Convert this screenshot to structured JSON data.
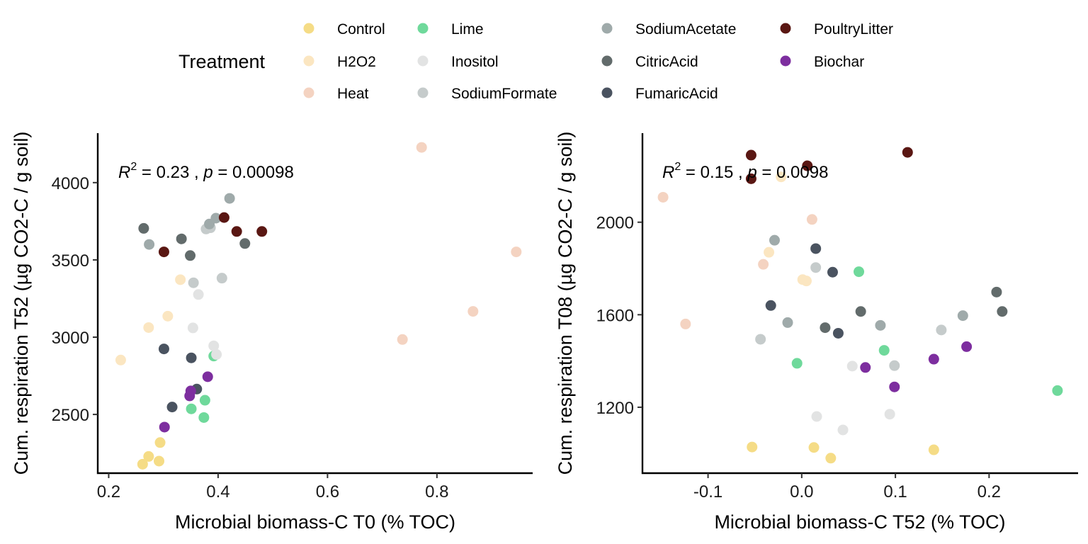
{
  "legend": {
    "title": "Treatment",
    "items": [
      {
        "label": "Control",
        "color": "#f5dc86"
      },
      {
        "label": "H2O2",
        "color": "#fbe6c1"
      },
      {
        "label": "Heat",
        "color": "#f4d3c1"
      },
      {
        "label": "Lime",
        "color": "#6fd99b"
      },
      {
        "label": "Inositol",
        "color": "#e2e3e3"
      },
      {
        "label": "SodiumFormate",
        "color": "#c5cbcb"
      },
      {
        "label": "SodiumAcetate",
        "color": "#9faaaa"
      },
      {
        "label": "CitricAcid",
        "color": "#626b6b"
      },
      {
        "label": "FumaricAcid",
        "color": "#4a5360"
      },
      {
        "label": "PoultryLitter",
        "color": "#5a1713"
      },
      {
        "label": "Biochar",
        "color": "#7d2e9f"
      }
    ]
  },
  "chart_data": [
    {
      "type": "scatter",
      "xlabel": "Microbial biomass-C T0 (% TOC)",
      "ylabel": "Cum. respiration T52 (µg CO2-C / g soil)",
      "stat": {
        "r2_label": "R",
        "r2_sup": "2",
        "r2_value": " = 0.23 , ",
        "p_label": "p",
        "p_value": " = 0.00098"
      },
      "xlim": [
        0.18,
        0.975
      ],
      "ylim": [
        2120,
        4320
      ],
      "xticks": [
        0.2,
        0.4,
        0.6,
        0.8
      ],
      "xtick_labels": [
        "0.2",
        "0.4",
        "0.6",
        "0.8"
      ],
      "yticks": [
        2500,
        3000,
        3500,
        4000
      ],
      "ytick_labels": [
        "2500",
        "3000",
        "3500",
        "4000"
      ],
      "grid": false,
      "points": [
        {
          "group": "Control",
          "x": 0.262,
          "y": 2178
        },
        {
          "group": "Control",
          "x": 0.273,
          "y": 2228
        },
        {
          "group": "Control",
          "x": 0.292,
          "y": 2198
        },
        {
          "group": "Control",
          "x": 0.294,
          "y": 2318
        },
        {
          "group": "H2O2",
          "x": 0.222,
          "y": 2852
        },
        {
          "group": "H2O2",
          "x": 0.273,
          "y": 3062
        },
        {
          "group": "H2O2",
          "x": 0.308,
          "y": 3136
        },
        {
          "group": "H2O2",
          "x": 0.331,
          "y": 3372
        },
        {
          "group": "Heat",
          "x": 0.737,
          "y": 2985
        },
        {
          "group": "Heat",
          "x": 0.772,
          "y": 4228
        },
        {
          "group": "Heat",
          "x": 0.866,
          "y": 3167
        },
        {
          "group": "Heat",
          "x": 0.945,
          "y": 3552
        },
        {
          "group": "Lime",
          "x": 0.351,
          "y": 2536
        },
        {
          "group": "Lime",
          "x": 0.374,
          "y": 2480
        },
        {
          "group": "Lime",
          "x": 0.376,
          "y": 2592
        },
        {
          "group": "Lime",
          "x": 0.392,
          "y": 2878
        },
        {
          "group": "Inositol",
          "x": 0.354,
          "y": 3060
        },
        {
          "group": "Inositol",
          "x": 0.364,
          "y": 3276
        },
        {
          "group": "Inositol",
          "x": 0.392,
          "y": 2944
        },
        {
          "group": "Inositol",
          "x": 0.397,
          "y": 2888
        },
        {
          "group": "SodiumFormate",
          "x": 0.355,
          "y": 3352
        },
        {
          "group": "SodiumFormate",
          "x": 0.378,
          "y": 3700
        },
        {
          "group": "SodiumFormate",
          "x": 0.386,
          "y": 3708
        },
        {
          "group": "SodiumFormate",
          "x": 0.407,
          "y": 3382
        },
        {
          "group": "SodiumAcetate",
          "x": 0.274,
          "y": 3600
        },
        {
          "group": "SodiumAcetate",
          "x": 0.384,
          "y": 3732
        },
        {
          "group": "SodiumAcetate",
          "x": 0.396,
          "y": 3770
        },
        {
          "group": "SodiumAcetate",
          "x": 0.421,
          "y": 3898
        },
        {
          "group": "CitricAcid",
          "x": 0.264,
          "y": 3704
        },
        {
          "group": "CitricAcid",
          "x": 0.333,
          "y": 3636
        },
        {
          "group": "CitricAcid",
          "x": 0.349,
          "y": 3528
        },
        {
          "group": "CitricAcid",
          "x": 0.449,
          "y": 3606
        },
        {
          "group": "FumaricAcid",
          "x": 0.301,
          "y": 2924
        },
        {
          "group": "FumaricAcid",
          "x": 0.316,
          "y": 2548
        },
        {
          "group": "FumaricAcid",
          "x": 0.351,
          "y": 2866
        },
        {
          "group": "FumaricAcid",
          "x": 0.361,
          "y": 2664
        },
        {
          "group": "PoultryLitter",
          "x": 0.301,
          "y": 3552
        },
        {
          "group": "PoultryLitter",
          "x": 0.411,
          "y": 3774
        },
        {
          "group": "PoultryLitter",
          "x": 0.434,
          "y": 3684
        },
        {
          "group": "PoultryLitter",
          "x": 0.48,
          "y": 3684
        },
        {
          "group": "Biochar",
          "x": 0.302,
          "y": 2418
        },
        {
          "group": "Biochar",
          "x": 0.348,
          "y": 2620
        },
        {
          "group": "Biochar",
          "x": 0.35,
          "y": 2652
        },
        {
          "group": "Biochar",
          "x": 0.381,
          "y": 2744
        }
      ]
    },
    {
      "type": "scatter",
      "xlabel": "Microbial biomass-C T52 (% TOC)",
      "ylabel": "Cum. respiration T08 (µg CO2-C / g soil)",
      "stat": {
        "r2_label": "R",
        "r2_sup": "2",
        "r2_value": " = 0.15 , ",
        "p_label": "p",
        "p_value": " = 0.0098"
      },
      "xlim": [
        -0.17,
        0.295
      ],
      "ylim": [
        915,
        2385
      ],
      "xticks": [
        -0.1,
        0.0,
        0.1,
        0.2
      ],
      "xtick_labels": [
        "-0.1",
        "0.0",
        "0.1",
        "0.2"
      ],
      "yticks": [
        1200,
        1600,
        2000
      ],
      "ytick_labels": [
        "1200",
        "1600",
        "2000"
      ],
      "grid": false,
      "points": [
        {
          "group": "Control",
          "x": -0.053,
          "y": 1028
        },
        {
          "group": "Control",
          "x": 0.013,
          "y": 1026
        },
        {
          "group": "Control",
          "x": 0.031,
          "y": 980
        },
        {
          "group": "Control",
          "x": 0.141,
          "y": 1016
        },
        {
          "group": "H2O2",
          "x": -0.022,
          "y": 2196
        },
        {
          "group": "H2O2",
          "x": -0.035,
          "y": 1870
        },
        {
          "group": "H2O2",
          "x": 0.001,
          "y": 1752
        },
        {
          "group": "H2O2",
          "x": 0.005,
          "y": 1746
        },
        {
          "group": "Heat",
          "x": -0.148,
          "y": 2108
        },
        {
          "group": "Heat",
          "x": -0.124,
          "y": 1560
        },
        {
          "group": "Heat",
          "x": -0.041,
          "y": 1818
        },
        {
          "group": "Heat",
          "x": 0.011,
          "y": 2012
        },
        {
          "group": "Lime",
          "x": -0.005,
          "y": 1390
        },
        {
          "group": "Lime",
          "x": 0.061,
          "y": 1786
        },
        {
          "group": "Lime",
          "x": 0.088,
          "y": 1446
        },
        {
          "group": "Lime",
          "x": 0.273,
          "y": 1272
        },
        {
          "group": "Inositol",
          "x": 0.016,
          "y": 1160
        },
        {
          "group": "Inositol",
          "x": 0.044,
          "y": 1102
        },
        {
          "group": "Inositol",
          "x": 0.054,
          "y": 1378
        },
        {
          "group": "Inositol",
          "x": 0.094,
          "y": 1170
        },
        {
          "group": "SodiumFormate",
          "x": -0.044,
          "y": 1494
        },
        {
          "group": "SodiumFormate",
          "x": 0.015,
          "y": 1804
        },
        {
          "group": "SodiumFormate",
          "x": 0.099,
          "y": 1380
        },
        {
          "group": "SodiumFormate",
          "x": 0.149,
          "y": 1534
        },
        {
          "group": "SodiumAcetate",
          "x": -0.029,
          "y": 1922
        },
        {
          "group": "SodiumAcetate",
          "x": -0.015,
          "y": 1566
        },
        {
          "group": "SodiumAcetate",
          "x": 0.084,
          "y": 1554
        },
        {
          "group": "SodiumAcetate",
          "x": 0.172,
          "y": 1596
        },
        {
          "group": "CitricAcid",
          "x": 0.025,
          "y": 1544
        },
        {
          "group": "CitricAcid",
          "x": 0.063,
          "y": 1614
        },
        {
          "group": "CitricAcid",
          "x": 0.208,
          "y": 1698
        },
        {
          "group": "CitricAcid",
          "x": 0.214,
          "y": 1614
        },
        {
          "group": "FumaricAcid",
          "x": -0.033,
          "y": 1640
        },
        {
          "group": "FumaricAcid",
          "x": 0.015,
          "y": 1886
        },
        {
          "group": "FumaricAcid",
          "x": 0.033,
          "y": 1784
        },
        {
          "group": "FumaricAcid",
          "x": 0.039,
          "y": 1520
        },
        {
          "group": "PoultryLitter",
          "x": -0.054,
          "y": 2290
        },
        {
          "group": "PoultryLitter",
          "x": -0.054,
          "y": 2188
        },
        {
          "group": "PoultryLitter",
          "x": 0.006,
          "y": 2244
        },
        {
          "group": "PoultryLitter",
          "x": 0.113,
          "y": 2302
        },
        {
          "group": "Biochar",
          "x": 0.068,
          "y": 1372
        },
        {
          "group": "Biochar",
          "x": 0.099,
          "y": 1288
        },
        {
          "group": "Biochar",
          "x": 0.141,
          "y": 1408
        },
        {
          "group": "Biochar",
          "x": 0.176,
          "y": 1462
        }
      ]
    }
  ]
}
